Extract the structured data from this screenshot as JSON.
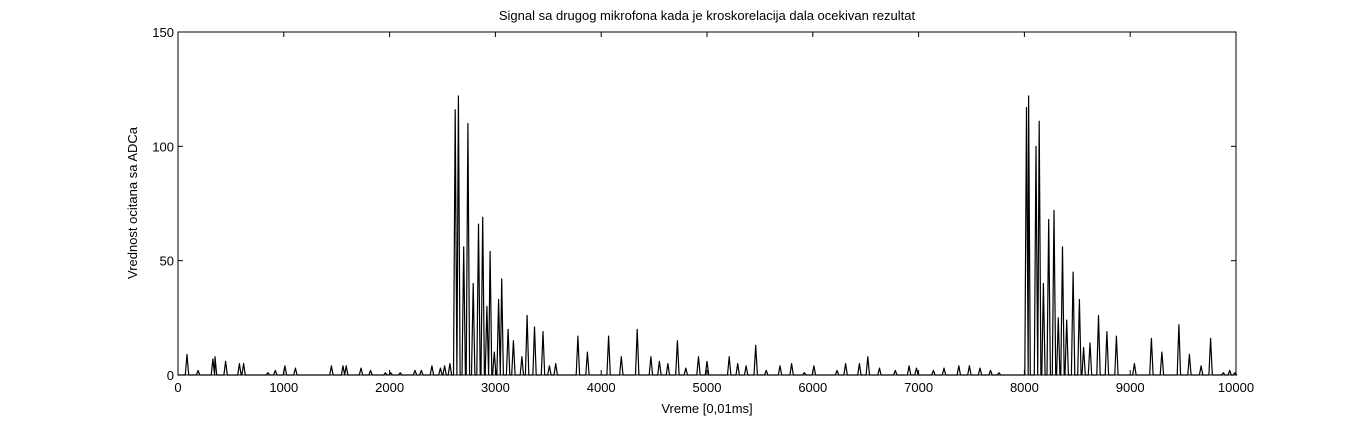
{
  "chart_data": {
    "type": "line",
    "title": "Signal sa drugog mikrofona kada je kroskorelacija dala ocekivan rezultat",
    "xlabel": "Vreme [0,01ms]",
    "ylabel": "Vrednost ocitana sa ADCa",
    "xlim": [
      0,
      10000
    ],
    "ylim": [
      0,
      150
    ],
    "grid": false,
    "xticks": [
      0,
      1000,
      2000,
      3000,
      4000,
      5000,
      6000,
      7000,
      8000,
      9000,
      10000
    ],
    "yticks": [
      0,
      50,
      100,
      150
    ],
    "xtick_labels": [
      "0",
      "1000",
      "2000",
      "3000",
      "4000",
      "5000",
      "6000",
      "7000",
      "8000",
      "9000",
      "10000"
    ],
    "ytick_labels": [
      "0",
      "50",
      "100",
      "150"
    ],
    "line_color": "#000000",
    "peaks": [
      [
        85,
        9
      ],
      [
        190,
        2
      ],
      [
        330,
        7
      ],
      [
        350,
        8
      ],
      [
        450,
        6
      ],
      [
        580,
        5
      ],
      [
        620,
        5
      ],
      [
        850,
        1
      ],
      [
        920,
        2
      ],
      [
        1010,
        4
      ],
      [
        1110,
        3
      ],
      [
        1450,
        4
      ],
      [
        1560,
        4
      ],
      [
        1590,
        4
      ],
      [
        1730,
        3
      ],
      [
        1820,
        2
      ],
      [
        1960,
        1
      ],
      [
        2010,
        1
      ],
      [
        2100,
        1
      ],
      [
        2240,
        2
      ],
      [
        2300,
        2
      ],
      [
        2400,
        4
      ],
      [
        2480,
        3
      ],
      [
        2520,
        4
      ],
      [
        2570,
        5
      ],
      [
        2620,
        116
      ],
      [
        2650,
        122
      ],
      [
        2700,
        56
      ],
      [
        2740,
        110
      ],
      [
        2790,
        40
      ],
      [
        2840,
        66
      ],
      [
        2880,
        69
      ],
      [
        2920,
        30
      ],
      [
        2950,
        54
      ],
      [
        2990,
        10
      ],
      [
        3030,
        33
      ],
      [
        3060,
        42
      ],
      [
        3120,
        20
      ],
      [
        3170,
        15
      ],
      [
        3250,
        8
      ],
      [
        3300,
        26
      ],
      [
        3370,
        21
      ],
      [
        3450,
        19
      ],
      [
        3510,
        4
      ],
      [
        3570,
        5
      ],
      [
        3780,
        17
      ],
      [
        3870,
        10
      ],
      [
        4070,
        17
      ],
      [
        4190,
        8
      ],
      [
        4340,
        20
      ],
      [
        4470,
        8
      ],
      [
        4550,
        6
      ],
      [
        4630,
        5
      ],
      [
        4720,
        15
      ],
      [
        4800,
        3
      ],
      [
        4920,
        8
      ],
      [
        5000,
        6
      ],
      [
        5210,
        8
      ],
      [
        5290,
        5
      ],
      [
        5370,
        4
      ],
      [
        5460,
        13
      ],
      [
        5560,
        2
      ],
      [
        5690,
        4
      ],
      [
        5800,
        5
      ],
      [
        5920,
        1
      ],
      [
        6010,
        4
      ],
      [
        6230,
        2
      ],
      [
        6310,
        5
      ],
      [
        6440,
        5
      ],
      [
        6520,
        8
      ],
      [
        6630,
        3
      ],
      [
        6780,
        2
      ],
      [
        6910,
        4
      ],
      [
        6980,
        3
      ],
      [
        7140,
        2
      ],
      [
        7240,
        3
      ],
      [
        7380,
        4
      ],
      [
        7480,
        4
      ],
      [
        7580,
        3
      ],
      [
        7680,
        2
      ],
      [
        7760,
        1
      ],
      [
        8020,
        117
      ],
      [
        8040,
        122
      ],
      [
        8110,
        100
      ],
      [
        8140,
        111
      ],
      [
        8180,
        40
      ],
      [
        8230,
        68
      ],
      [
        8280,
        72
      ],
      [
        8320,
        25
      ],
      [
        8360,
        56
      ],
      [
        8400,
        24
      ],
      [
        8460,
        45
      ],
      [
        8520,
        33
      ],
      [
        8560,
        12
      ],
      [
        8620,
        14
      ],
      [
        8700,
        26
      ],
      [
        8780,
        19
      ],
      [
        8870,
        17
      ],
      [
        9040,
        5
      ],
      [
        9200,
        16
      ],
      [
        9300,
        10
      ],
      [
        9460,
        22
      ],
      [
        9560,
        9
      ],
      [
        9670,
        4
      ],
      [
        9760,
        16
      ],
      [
        9880,
        1
      ],
      [
        9940,
        2
      ],
      [
        9990,
        1
      ]
    ]
  }
}
